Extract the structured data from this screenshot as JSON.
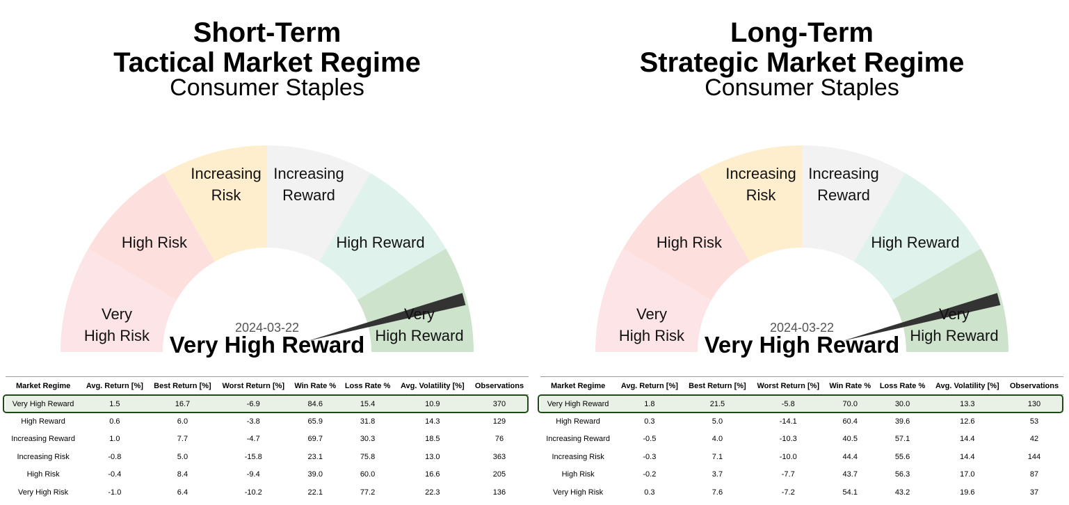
{
  "colors": {
    "very_high_risk": "#fde4e6",
    "high_risk": "#fde0dd",
    "increasing_risk": "#feeecd",
    "increasing_reward": "#f2f2f2",
    "high_reward": "#dff2eb",
    "very_high_reward": "#cde3cc",
    "needle": "#333333",
    "highlight_border": "#1f4a17",
    "highlight_fill": "#e9f1e6"
  },
  "panels": [
    {
      "title_line1": "Short-Term",
      "title_line2": "Tactical Market Regime",
      "subtitle": "Consumer Staples",
      "segments": [
        {
          "line1": "Very",
          "line2": "High Risk",
          "color_key": "very_high_risk"
        },
        {
          "line1": "High Risk",
          "line2": "",
          "color_key": "high_risk"
        },
        {
          "line1": "Increasing",
          "line2": "Risk",
          "color_key": "increasing_risk"
        },
        {
          "line1": "Increasing",
          "line2": "Reward",
          "color_key": "increasing_reward"
        },
        {
          "line1": "High Reward",
          "line2": "",
          "color_key": "high_reward"
        },
        {
          "line1": "Very",
          "line2": "High Reward",
          "color_key": "very_high_reward"
        }
      ],
      "date": "2024-03-22",
      "current_regime": "Very High Reward",
      "table": {
        "headers": [
          "Market Regime",
          "Avg. Return [%]",
          "Best Return [%]",
          "Worst Return [%]",
          "Win Rate %",
          "Loss Rate %",
          "Avg. Volatility [%]",
          "Observations"
        ],
        "rows": [
          [
            "Very High Reward",
            "1.5",
            "16.7",
            "-6.9",
            "84.6",
            "15.4",
            "10.9",
            "370"
          ],
          [
            "High Reward",
            "0.6",
            "6.0",
            "-3.8",
            "65.9",
            "31.8",
            "14.3",
            "129"
          ],
          [
            "Increasing Reward",
            "1.0",
            "7.7",
            "-4.7",
            "69.7",
            "30.3",
            "18.5",
            "76"
          ],
          [
            "Increasing Risk",
            "-0.8",
            "5.0",
            "-15.8",
            "23.1",
            "75.8",
            "13.0",
            "363"
          ],
          [
            "High Risk",
            "-0.4",
            "8.4",
            "-9.4",
            "39.0",
            "60.0",
            "16.6",
            "205"
          ],
          [
            "Very High Risk",
            "-1.0",
            "6.4",
            "-10.2",
            "22.1",
            "77.2",
            "22.3",
            "136"
          ]
        ]
      }
    },
    {
      "title_line1": "Long-Term",
      "title_line2": "Strategic Market Regime",
      "subtitle": "Consumer Staples",
      "segments": [
        {
          "line1": "Very",
          "line2": "High Risk",
          "color_key": "very_high_risk"
        },
        {
          "line1": "High Risk",
          "line2": "",
          "color_key": "high_risk"
        },
        {
          "line1": "Increasing",
          "line2": "Risk",
          "color_key": "increasing_risk"
        },
        {
          "line1": "Increasing",
          "line2": "Reward",
          "color_key": "increasing_reward"
        },
        {
          "line1": "High Reward",
          "line2": "",
          "color_key": "high_reward"
        },
        {
          "line1": "Very",
          "line2": "High Reward",
          "color_key": "very_high_reward"
        }
      ],
      "date": "2024-03-22",
      "current_regime": "Very High Reward",
      "table": {
        "headers": [
          "Market Regime",
          "Avg. Return [%]",
          "Best Return [%]",
          "Worst Return [%]",
          "Win Rate %",
          "Loss Rate %",
          "Avg. Volatility [%]",
          "Observations"
        ],
        "rows": [
          [
            "Very High Reward",
            "1.8",
            "21.5",
            "-5.8",
            "70.0",
            "30.0",
            "13.3",
            "130"
          ],
          [
            "High Reward",
            "0.3",
            "5.0",
            "-14.1",
            "60.4",
            "39.6",
            "12.6",
            "53"
          ],
          [
            "Increasing Reward",
            "-0.5",
            "4.0",
            "-10.3",
            "40.5",
            "57.1",
            "14.4",
            "42"
          ],
          [
            "Increasing Risk",
            "-0.3",
            "7.1",
            "-10.0",
            "44.4",
            "55.6",
            "14.4",
            "144"
          ],
          [
            "High Risk",
            "-0.2",
            "3.7",
            "-7.7",
            "43.7",
            "56.3",
            "17.0",
            "87"
          ],
          [
            "Very High Risk",
            "0.3",
            "7.6",
            "-7.2",
            "54.1",
            "43.2",
            "19.6",
            "37"
          ]
        ]
      }
    }
  ],
  "chart_data": [
    {
      "type": "gauge",
      "title": "Short-Term Tactical Market Regime",
      "subtitle": "Consumer Staples",
      "categories": [
        "Very High Risk",
        "High Risk",
        "Increasing Risk",
        "Increasing Reward",
        "High Reward",
        "Very High Reward"
      ],
      "current": "Very High Reward",
      "needle_angle_deg": 165,
      "date": "2024-03-22"
    },
    {
      "type": "gauge",
      "title": "Long-Term Strategic Market Regime",
      "subtitle": "Consumer Staples",
      "categories": [
        "Very High Risk",
        "High Risk",
        "Increasing Risk",
        "Increasing Reward",
        "High Reward",
        "Very High Reward"
      ],
      "current": "Very High Reward",
      "needle_angle_deg": 165,
      "date": "2024-03-22"
    }
  ]
}
